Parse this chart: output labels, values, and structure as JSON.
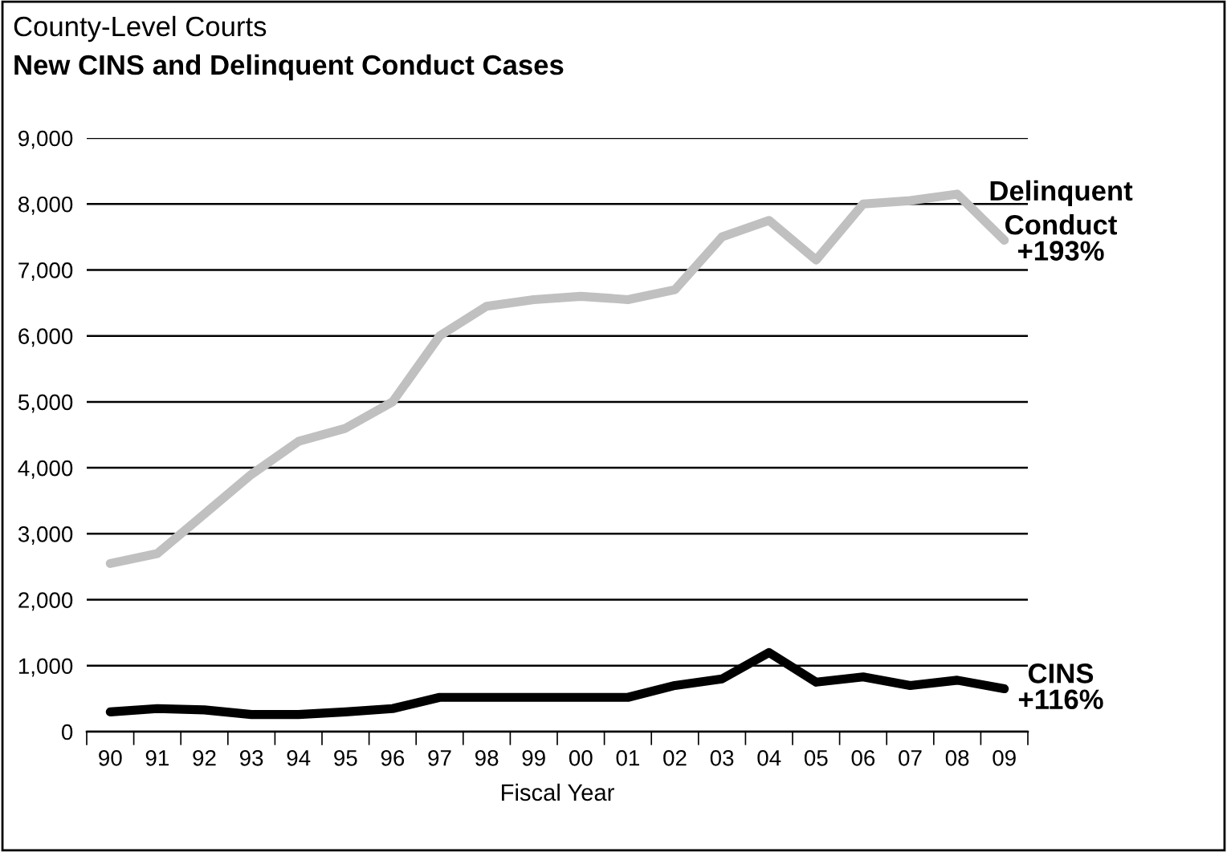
{
  "chart_data": {
    "type": "line",
    "title": "New CINS and Delinquent Conduct Cases",
    "subtitle": "County-Level Courts",
    "xlabel": "Fiscal Year",
    "categories": [
      "90",
      "91",
      "92",
      "93",
      "94",
      "95",
      "96",
      "97",
      "98",
      "99",
      "00",
      "01",
      "02",
      "03",
      "04",
      "05",
      "06",
      "07",
      "08",
      "09"
    ],
    "series": [
      {
        "name": "Delinquent Conduct",
        "color": "#c0c0c0",
        "values": [
          2550,
          2700,
          3300,
          3900,
          4400,
          4600,
          5000,
          6000,
          6450,
          6550,
          6600,
          6550,
          6700,
          7500,
          7750,
          7150,
          8000,
          8050,
          8150,
          7450
        ]
      },
      {
        "name": "CINS",
        "color": "#000000",
        "values": [
          300,
          350,
          330,
          260,
          260,
          300,
          350,
          520,
          520,
          520,
          520,
          520,
          700,
          800,
          1200,
          750,
          830,
          700,
          780,
          650
        ]
      }
    ],
    "annotations": [
      {
        "text": "+193%",
        "x": "09",
        "y": 7450
      },
      {
        "text": "+116%",
        "x": "09",
        "y": 650
      }
    ],
    "ylim": [
      0,
      9000
    ],
    "yticks": [
      {
        "value": 0,
        "label": "0"
      },
      {
        "value": 1000,
        "label": "1,000"
      },
      {
        "value": 2000,
        "label": "2,000"
      },
      {
        "value": 3000,
        "label": "3,000"
      },
      {
        "value": 4000,
        "label": "4,000"
      },
      {
        "value": 5000,
        "label": "5,000"
      },
      {
        "value": 6000,
        "label": "6,000"
      },
      {
        "value": 7000,
        "label": "7,000"
      },
      {
        "value": 8000,
        "label": "8,000"
      },
      {
        "value": 9000,
        "label": "9,000"
      }
    ],
    "grid": "y",
    "legend": false,
    "marker": "none",
    "line_style": "solid"
  }
}
